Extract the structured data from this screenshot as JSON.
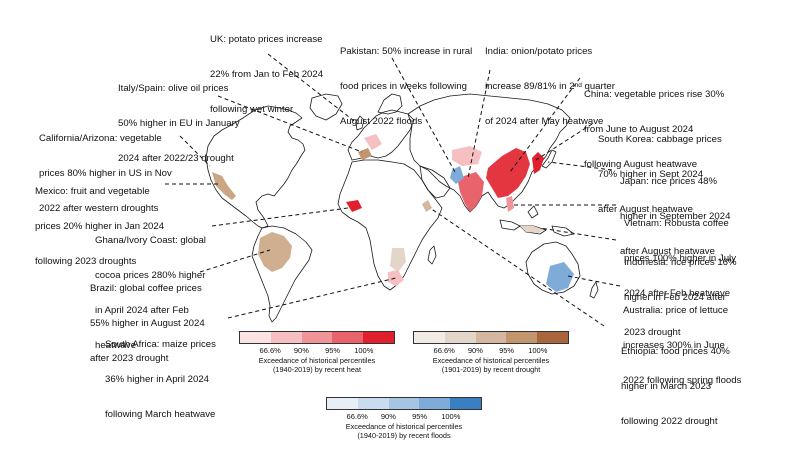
{
  "annotations": [
    {
      "id": "uk",
      "lines": [
        "UK: potato prices increase",
        "22% from Jan to Feb 2024",
        "following wet winter"
      ]
    },
    {
      "id": "pakistan",
      "lines": [
        "Pakistan: 50% increase in rural",
        "food prices in weeks following",
        "August 2022 floods"
      ]
    },
    {
      "id": "india",
      "line1": "India: onion/potato prices",
      "line2_pre": "increase 89/81% in 2",
      "line2_sup": "nd",
      "line2_post": " quarter",
      "line3": "of 2024 after May heatwave"
    },
    {
      "id": "italy",
      "lines": [
        "Italy/Spain: olive oil prices",
        "50% higher in EU in January",
        "2024 after 2022/23 drought"
      ]
    },
    {
      "id": "china",
      "lines": [
        "China: vegetable prices rise 30%",
        "from June to August 2024",
        "following August heatwave"
      ]
    },
    {
      "id": "california",
      "lines": [
        "California/Arizona: vegetable",
        "prices 80% higher in US in Nov",
        "2022 after western droughts"
      ]
    },
    {
      "id": "korea",
      "lines": [
        "South Korea: cabbage prices",
        "70% higher in Sept 2024",
        "after August heatwave"
      ]
    },
    {
      "id": "mexico",
      "lines": [
        "Mexico: fruit and vegetable",
        "prices 20% higher in Jan 2024",
        "following 2023 droughts"
      ]
    },
    {
      "id": "japan",
      "lines": [
        "Japan: rice prices 48%",
        "higher in September 2024",
        "after August heatwave"
      ]
    },
    {
      "id": "ghana",
      "lines": [
        "Ghana/Ivory Coast: global",
        "cocoa prices 280% higher",
        "in April 2024 after Feb",
        "heatwave"
      ]
    },
    {
      "id": "vietnam",
      "lines": [
        "Vietnam: Robusta coffee",
        "prices 100% higher in July",
        "2024 after Feb heatwave"
      ]
    },
    {
      "id": "indonesia",
      "lines": [
        "Indonesia: rice prices 16%",
        "higher in Feb 2024 after",
        "2023 drought"
      ]
    },
    {
      "id": "brazil",
      "lines": [
        "Brazil: global coffee prices",
        "55% higher in August 2024",
        "after 2023 drought"
      ]
    },
    {
      "id": "australia",
      "lines": [
        "Australia: price of lettuce",
        "increases 300% in June",
        "2022 following spring floods"
      ]
    },
    {
      "id": "southafrica",
      "lines": [
        "South Africa: maize prices",
        "36% higher in April 2024",
        "following March heatwave"
      ]
    },
    {
      "id": "ethiopia",
      "lines": [
        "Ethiopia: food prices 40%",
        "higher in March 2023",
        "following 2022 drought"
      ]
    }
  ],
  "scales": [
    {
      "id": "heat",
      "colors": [
        "#fbe3e3",
        "#f6c0c3",
        "#ef9499",
        "#e8636c",
        "#e0202c"
      ],
      "ticks": [
        "66.6%",
        "90%",
        "95%",
        "100%"
      ],
      "caption": [
        "Exceedance of historical percentiles",
        "(1940-2019) by recent heat"
      ]
    },
    {
      "id": "drought",
      "colors": [
        "#f1ebe6",
        "#e4d5c9",
        "#d3b7a1",
        "#c2956f",
        "#a9653b"
      ],
      "ticks": [
        "66.6%",
        "90%",
        "95%",
        "100%"
      ],
      "caption": [
        "Exceedance of historical percentiles",
        "(1901-2019) by recent drought"
      ]
    },
    {
      "id": "floods",
      "colors": [
        "#e7eef6",
        "#c9dbee",
        "#a5c5e4",
        "#7eabd8",
        "#3b7fc3"
      ],
      "ticks": [
        "66.6%",
        "90%",
        "95%",
        "100%"
      ],
      "caption": [
        "Exceedance of historical percentiles",
        "(1940-2019) by recent floods"
      ]
    }
  ]
}
